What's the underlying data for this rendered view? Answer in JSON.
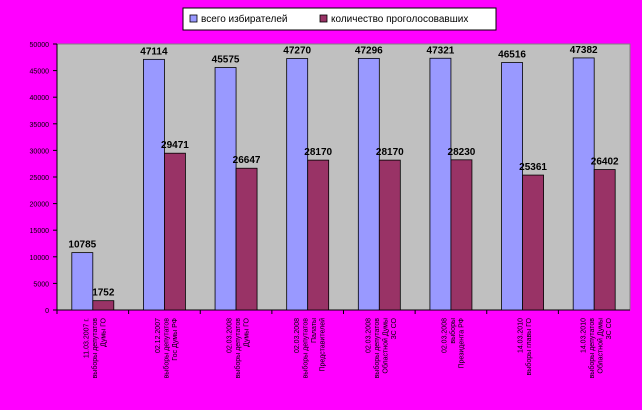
{
  "chart_data": {
    "type": "bar",
    "categories": [
      "11.03.2007 г. выборы депутатов Думы ГО",
      "02.12.2007 выборы депутатов Гос Думы РФ",
      "02.03.2008 выборы депутатов Думы ГО",
      "02.03.2008 выборы депутатов Палаты Представителей",
      "02.03.2008 выборы депутатов Областной Думы ЗС СО",
      "02.03.2008 выборы Президента РФ",
      "14.03.2010 выборы главы ГО",
      "14.03.2010 выборы депутатов Областной Думы ЗС СО"
    ],
    "series": [
      {
        "name": "всего избирателей",
        "values": [
          10785,
          47114,
          45575,
          47270,
          47296,
          47321,
          46516,
          47382
        ],
        "color": "#9999ff"
      },
      {
        "name": "количество проголосовавших",
        "values": [
          1752,
          29471,
          26647,
          28170,
          28170,
          28230,
          25361,
          26402
        ],
        "color": "#993366"
      }
    ],
    "ylim": [
      0,
      50000
    ],
    "yticks": [
      0,
      5000,
      10000,
      15000,
      20000,
      25000,
      30000,
      35000,
      40000,
      45000,
      50000
    ],
    "legend": "top",
    "grid": false,
    "plot_background": "#c0c0c0",
    "page_background": "#ff00ff"
  }
}
